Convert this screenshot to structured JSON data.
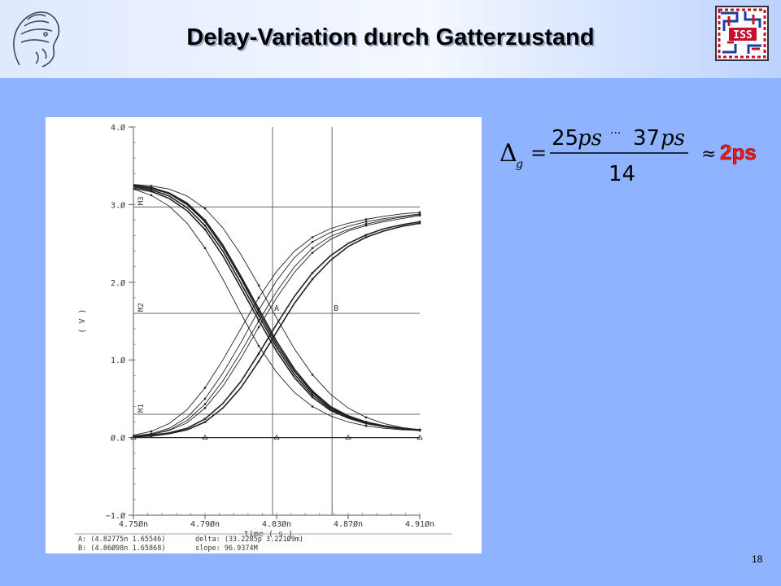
{
  "slide": {
    "title": "Delay-Variation durch Gatterzustand",
    "page_number": "18",
    "logo_right_text": "ISS",
    "colors": {
      "background": "#8fb3ff",
      "accent_red": "#ff1a1a"
    }
  },
  "formula": {
    "symbol": "Δ",
    "subscript": "g",
    "equals": "=",
    "numerator_left": "25",
    "numerator_right": "37",
    "unit": "ps",
    "dots": "···",
    "denominator": "14",
    "approx": "≈",
    "result": "2ps"
  },
  "chart_data": {
    "type": "line",
    "xlabel": "time ( s )",
    "ylabel": "( V )",
    "x_ticks": [
      "4.75Øn",
      "4.79Øn",
      "4.83Øn",
      "4.87Øn",
      "4.91Øn"
    ],
    "y_ticks": [
      "4.Ø",
      "3.Ø",
      "2.Ø",
      "1.Ø",
      "Ø.Ø",
      "−1.Ø"
    ],
    "xlim": [
      4.75,
      4.91
    ],
    "ylim": [
      -1.0,
      4.0
    ],
    "x_unit": "ns",
    "grid": false,
    "markers": {
      "horizontal": [
        {
          "label": "M3",
          "y": 2.97
        },
        {
          "label": "M2",
          "y": 1.6
        },
        {
          "label": "M1",
          "y": 0.3
        }
      ],
      "vertical": [
        {
          "label": "A",
          "x": 4.82775
        },
        {
          "label": "B",
          "x": 4.86098
        }
      ]
    },
    "falling_family": [
      {
        "x": [
          4.75,
          4.76,
          4.77,
          4.78,
          4.79,
          4.8,
          4.81,
          4.82,
          4.83,
          4.84,
          4.85,
          4.86,
          4.87,
          4.88,
          4.89,
          4.9,
          4.91
        ],
        "values": [
          3.25,
          3.22,
          3.15,
          3.02,
          2.8,
          2.48,
          2.08,
          1.66,
          1.24,
          0.88,
          0.6,
          0.4,
          0.28,
          0.2,
          0.15,
          0.12,
          0.1
        ]
      },
      {
        "x": [
          4.75,
          4.76,
          4.77,
          4.78,
          4.79,
          4.8,
          4.81,
          4.82,
          4.83,
          4.84,
          4.85,
          4.86,
          4.87,
          4.88,
          4.89,
          4.9,
          4.91
        ],
        "values": [
          3.23,
          3.19,
          3.11,
          2.96,
          2.73,
          2.4,
          1.99,
          1.57,
          1.16,
          0.81,
          0.55,
          0.37,
          0.26,
          0.19,
          0.14,
          0.11,
          0.1
        ]
      },
      {
        "x": [
          4.75,
          4.76,
          4.77,
          4.78,
          4.79,
          4.8,
          4.81,
          4.82,
          4.83,
          4.84,
          4.85,
          4.86,
          4.87,
          4.88,
          4.89,
          4.9,
          4.91
        ],
        "values": [
          3.21,
          3.17,
          3.08,
          2.92,
          2.68,
          2.34,
          1.93,
          1.51,
          1.11,
          0.77,
          0.52,
          0.35,
          0.25,
          0.18,
          0.14,
          0.11,
          0.1
        ]
      },
      {
        "x": [
          4.75,
          4.76,
          4.77,
          4.78,
          4.79,
          4.8,
          4.81,
          4.82,
          4.83,
          4.84,
          4.85,
          4.86,
          4.87,
          4.88,
          4.89,
          4.9,
          4.91
        ],
        "values": [
          3.24,
          3.21,
          3.14,
          3.0,
          2.78,
          2.45,
          2.05,
          1.62,
          1.2,
          0.85,
          0.58,
          0.39,
          0.27,
          0.2,
          0.15,
          0.12,
          0.1
        ]
      },
      {
        "x": [
          4.75,
          4.76,
          4.77,
          4.78,
          4.79,
          4.8,
          4.81,
          4.82,
          4.83,
          4.84,
          4.85,
          4.86,
          4.87,
          4.88,
          4.89,
          4.9,
          4.91
        ],
        "values": [
          3.2,
          3.12,
          2.98,
          2.76,
          2.44,
          2.04,
          1.6,
          1.18,
          0.84,
          0.58,
          0.4,
          0.28,
          0.2,
          0.15,
          0.12,
          0.1,
          0.09
        ]
      },
      {
        "x": [
          4.75,
          4.76,
          4.77,
          4.78,
          4.79,
          4.8,
          4.81,
          4.82,
          4.83,
          4.84,
          4.85,
          4.86,
          4.87,
          4.88,
          4.89,
          4.9,
          4.91
        ],
        "values": [
          3.26,
          3.24,
          3.2,
          3.11,
          2.95,
          2.7,
          2.36,
          1.96,
          1.54,
          1.14,
          0.81,
          0.56,
          0.38,
          0.26,
          0.18,
          0.13,
          0.1
        ]
      }
    ],
    "rising_family": [
      {
        "x": [
          4.75,
          4.76,
          4.77,
          4.78,
          4.79,
          4.8,
          4.81,
          4.82,
          4.83,
          4.84,
          4.85,
          4.86,
          4.87,
          4.88,
          4.89,
          4.9,
          4.91
        ],
        "values": [
          0.02,
          0.05,
          0.12,
          0.26,
          0.5,
          0.83,
          1.22,
          1.64,
          2.02,
          2.32,
          2.52,
          2.64,
          2.72,
          2.78,
          2.82,
          2.85,
          2.88
        ]
      },
      {
        "x": [
          4.75,
          4.76,
          4.77,
          4.78,
          4.79,
          4.8,
          4.81,
          4.82,
          4.83,
          4.84,
          4.85,
          4.86,
          4.87,
          4.88,
          4.89,
          4.9,
          4.91
        ],
        "values": [
          0.02,
          0.04,
          0.1,
          0.22,
          0.43,
          0.73,
          1.1,
          1.5,
          1.88,
          2.2,
          2.44,
          2.59,
          2.68,
          2.75,
          2.8,
          2.84,
          2.87
        ]
      },
      {
        "x": [
          4.75,
          4.76,
          4.77,
          4.78,
          4.79,
          4.8,
          4.81,
          4.82,
          4.83,
          4.84,
          4.85,
          4.86,
          4.87,
          4.88,
          4.89,
          4.9,
          4.91
        ],
        "values": [
          0.02,
          0.04,
          0.09,
          0.19,
          0.38,
          0.66,
          1.02,
          1.42,
          1.8,
          2.13,
          2.38,
          2.55,
          2.66,
          2.73,
          2.78,
          2.82,
          2.86
        ]
      },
      {
        "x": [
          4.75,
          4.76,
          4.77,
          4.78,
          4.79,
          4.8,
          4.81,
          4.82,
          4.83,
          4.84,
          4.85,
          4.86,
          4.87,
          4.88,
          4.89,
          4.9,
          4.91
        ],
        "values": [
          0.01,
          0.03,
          0.06,
          0.12,
          0.24,
          0.44,
          0.72,
          1.08,
          1.46,
          1.82,
          2.12,
          2.34,
          2.5,
          2.61,
          2.69,
          2.74,
          2.78
        ]
      },
      {
        "x": [
          4.75,
          4.76,
          4.77,
          4.78,
          4.79,
          4.8,
          4.81,
          4.82,
          4.83,
          4.84,
          4.85,
          4.86,
          4.87,
          4.88,
          4.89,
          4.9,
          4.91
        ],
        "values": [
          0.01,
          0.02,
          0.05,
          0.1,
          0.2,
          0.38,
          0.64,
          0.98,
          1.36,
          1.73,
          2.04,
          2.28,
          2.46,
          2.58,
          2.66,
          2.72,
          2.76
        ]
      },
      {
        "x": [
          4.75,
          4.76,
          4.77,
          4.78,
          4.79,
          4.8,
          4.81,
          4.82,
          4.83,
          4.84,
          4.85,
          4.86,
          4.87,
          4.88,
          4.89,
          4.9,
          4.91
        ],
        "values": [
          0.03,
          0.08,
          0.18,
          0.36,
          0.64,
          1.0,
          1.4,
          1.8,
          2.14,
          2.4,
          2.58,
          2.69,
          2.76,
          2.81,
          2.85,
          2.88,
          2.9
        ]
      }
    ],
    "flat_trace": {
      "x": [
        4.75,
        4.79,
        4.83,
        4.87,
        4.91
      ],
      "values": [
        0.0,
        0.0,
        0.0,
        0.0,
        0.0
      ]
    },
    "readout": {
      "A": "A: (4.82775n 1.65546)",
      "B": "B: (4.86Ø98n 1.65868)",
      "delta": "delta: (33.2285p 3.221Ø9m)",
      "slope": "slope: 96.9374M"
    }
  }
}
